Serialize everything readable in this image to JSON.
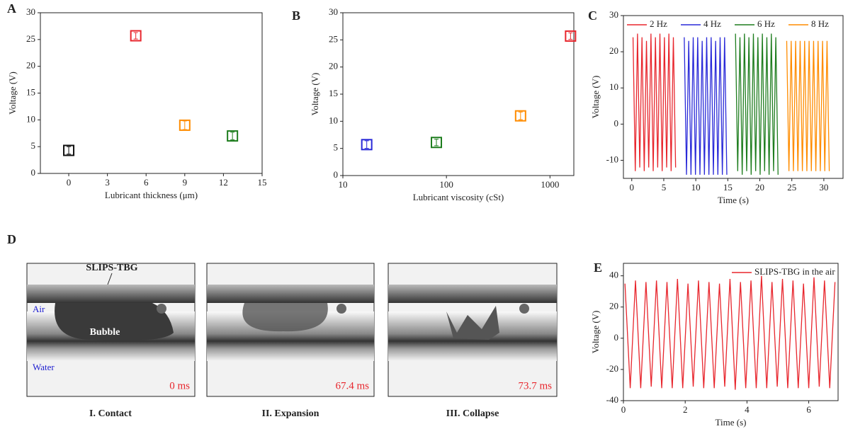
{
  "chart_data": [
    {
      "panel": "A",
      "type": "scatter",
      "xlabel": "Lubricant thickness (μm)",
      "ylabel": "Voltage (V)",
      "x": [
        0,
        5.2,
        9,
        12.7
      ],
      "values": [
        4.3,
        25.7,
        9,
        7
      ],
      "errors": [
        0.7,
        0.6,
        0.8,
        0.7
      ],
      "colors": [
        "#111111",
        "#e8262d",
        "#ff8c00",
        "#1e7d1e"
      ],
      "xlim": [
        -2.2,
        15
      ],
      "xticks": [
        0,
        3,
        6,
        9,
        12,
        15
      ],
      "ylim": [
        0,
        30
      ],
      "yticks": [
        0,
        5,
        10,
        15,
        20,
        25,
        30
      ]
    },
    {
      "panel": "B",
      "type": "scatter",
      "xscale": "log",
      "xlabel": "Lubricant viscosity (cSt)",
      "ylabel": "Voltage (V)",
      "x": [
        17,
        80,
        520,
        1580
      ],
      "values": [
        5.7,
        6.1,
        11,
        25.7
      ],
      "errors": [
        0.7,
        0.6,
        0.7,
        0.6
      ],
      "colors": [
        "#2a2ad8",
        "#1e7d1e",
        "#ff8c00",
        "#e8262d"
      ],
      "xlim": [
        10,
        1700
      ],
      "xticks": [
        10,
        100,
        1000
      ],
      "ylim": [
        0,
        30
      ],
      "yticks": [
        0,
        5,
        10,
        15,
        20,
        25,
        30
      ]
    },
    {
      "panel": "C",
      "type": "line",
      "xlabel": "Time (s)",
      "ylabel": "Voltage (V)",
      "legend": "top",
      "xlim": [
        -1.3,
        33
      ],
      "xticks": [
        0,
        5,
        10,
        15,
        20,
        25,
        30
      ],
      "ylim": [
        -15,
        30
      ],
      "yticks": [
        -10,
        0,
        10,
        20,
        30
      ],
      "series": [
        {
          "name": "2 Hz",
          "color": "#e8262d",
          "x": [
            0.2,
            0.55,
            0.9,
            1.25,
            1.6,
            1.95,
            2.3,
            2.65,
            3.0,
            3.35,
            3.7,
            4.05,
            4.4,
            4.75,
            5.1,
            5.45,
            5.8,
            6.15,
            6.5,
            6.85
          ],
          "values": [
            24,
            -13,
            25,
            -12,
            24,
            -13,
            23,
            -12,
            25,
            -13,
            24,
            -12,
            25,
            -13,
            24,
            -12,
            25,
            -13,
            24,
            -12
          ]
        },
        {
          "name": "4 Hz",
          "color": "#2a2ad8",
          "x": [
            8.2,
            8.55,
            8.9,
            9.25,
            9.6,
            9.95,
            10.3,
            10.65,
            11.0,
            11.35,
            11.7,
            12.05,
            12.4,
            12.75,
            13.1,
            13.45,
            13.8,
            14.15,
            14.5,
            14.85
          ],
          "values": [
            24,
            -14,
            23,
            -14,
            24,
            -14,
            24,
            -14,
            23,
            -14,
            24,
            -14,
            24,
            -14,
            23,
            -14,
            24,
            -14,
            24,
            -14
          ]
        },
        {
          "name": "6 Hz",
          "color": "#1e7d1e",
          "x": [
            16.2,
            16.55,
            16.9,
            17.25,
            17.6,
            17.95,
            18.3,
            18.65,
            19.0,
            19.35,
            19.7,
            20.05,
            20.4,
            20.75,
            21.1,
            21.45,
            21.8,
            22.15,
            22.5,
            22.85
          ],
          "values": [
            25,
            -13,
            24,
            -14,
            25,
            -13,
            24,
            -14,
            25,
            -13,
            24,
            -14,
            25,
            -13,
            24,
            -14,
            25,
            -13,
            24,
            -14
          ]
        },
        {
          "name": "8 Hz",
          "color": "#ff8c00",
          "x": [
            24.2,
            24.55,
            24.9,
            25.25,
            25.6,
            25.95,
            26.3,
            26.65,
            27.0,
            27.35,
            27.7,
            28.05,
            28.4,
            28.75,
            29.1,
            29.45,
            29.8,
            30.15,
            30.5,
            30.85
          ],
          "values": [
            23,
            -13,
            23,
            -13,
            23,
            -13,
            23,
            -13,
            23,
            -13,
            23,
            -13,
            23,
            -13,
            23,
            -13,
            23,
            -13,
            23,
            -13
          ]
        }
      ]
    },
    {
      "panel": "E",
      "type": "line",
      "xlabel": "Time (s)",
      "ylabel": "Voltage (V)",
      "legend": "top-right",
      "xlim": [
        0,
        6.95
      ],
      "xticks": [
        0,
        2,
        4,
        6
      ],
      "ylim": [
        -40,
        48
      ],
      "yticks": [
        -40,
        -20,
        0,
        20,
        40
      ],
      "series": [
        {
          "name": "SLIPS-TBG in the air",
          "color": "#e8262d",
          "x": [
            0.05,
            0.22,
            0.39,
            0.56,
            0.73,
            0.9,
            1.07,
            1.24,
            1.41,
            1.58,
            1.75,
            1.92,
            2.09,
            2.26,
            2.43,
            2.6,
            2.77,
            2.94,
            3.11,
            3.28,
            3.45,
            3.62,
            3.79,
            3.96,
            4.13,
            4.3,
            4.47,
            4.64,
            4.81,
            4.98,
            5.15,
            5.32,
            5.49,
            5.66,
            5.83,
            6.0,
            6.17,
            6.34,
            6.51,
            6.68,
            6.85
          ],
          "values": [
            35,
            -32,
            37,
            -32,
            36,
            -31,
            37,
            -32,
            36,
            -32,
            38,
            -32,
            35,
            -31,
            37,
            -32,
            36,
            -32,
            35,
            -31,
            38,
            -33,
            36,
            -32,
            37,
            -32,
            40,
            -32,
            36,
            -31,
            38,
            -32,
            37,
            -32,
            35,
            -32,
            39,
            -31,
            37,
            -32,
            36
          ]
        }
      ]
    }
  ],
  "figure_d": {
    "panel": "D",
    "device": "SLIPS-TBG",
    "air": "Air",
    "bubble": "Bubble",
    "water": "Water",
    "frames": [
      {
        "time": "0 ms",
        "caption": "I. Contact"
      },
      {
        "time": "67.4 ms",
        "caption": "II. Expansion"
      },
      {
        "time": "73.7 ms",
        "caption": "III. Collapse"
      }
    ]
  }
}
